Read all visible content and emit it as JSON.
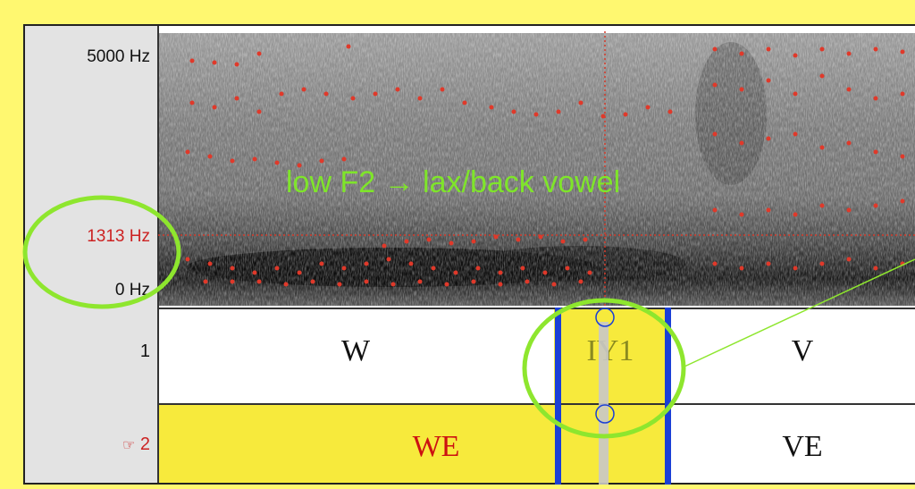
{
  "axis": {
    "top_freq": "5000 Hz",
    "cursor_freq": "1313 Hz",
    "bottom_freq": "0 Hz"
  },
  "tiers": {
    "tier1_number": "1",
    "tier2_number": "2",
    "tier2_pointer": "☞",
    "tier1_labels": [
      "W",
      "IY1",
      "V"
    ],
    "tier2_labels": [
      "WE",
      "VE"
    ]
  },
  "annotation": {
    "text": "low F2 → lax/back vowel"
  },
  "colors": {
    "background": "#FFF870",
    "selection_yellow": "#F7EA3C",
    "highlight_green": "#8EE62E",
    "formant_red": "#D63A2A",
    "boundary_blue": "#1A3FD6"
  }
}
